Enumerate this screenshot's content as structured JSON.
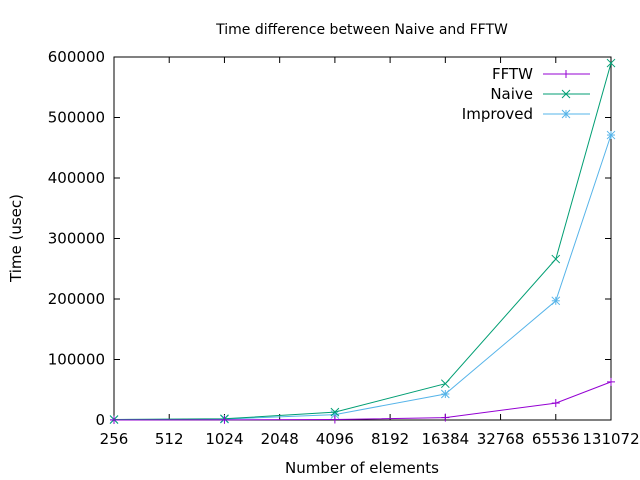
{
  "chart_data": {
    "type": "line",
    "title": "Time difference between Naive and FFTW",
    "xlabel": "Number of elements",
    "ylabel": "Time (usec)",
    "x": [
      256,
      1024,
      4096,
      16384,
      65536,
      131072
    ],
    "x_ticks": [
      "256",
      "512",
      "1024",
      "2048",
      "4096",
      "8192",
      "16384",
      "32768",
      "65536",
      "131072"
    ],
    "x_scale": "log2",
    "xlim": [
      256,
      131072
    ],
    "ylim": [
      0,
      600000
    ],
    "y_ticks": [
      0,
      100000,
      200000,
      300000,
      400000,
      500000,
      600000
    ],
    "grid": false,
    "legend_position": "top-right",
    "series": [
      {
        "name": "FFTW",
        "color": "#9400d3",
        "marker": "plus",
        "values": [
          50,
          200,
          800,
          4000,
          28000,
          63000
        ]
      },
      {
        "name": "Naive",
        "color": "#009e73",
        "marker": "cross",
        "values": [
          800,
          2000,
          13000,
          60000,
          266000,
          590000
        ]
      },
      {
        "name": "Improved",
        "color": "#56b4e9",
        "marker": "star",
        "values": [
          500,
          1500,
          9000,
          43000,
          197000,
          471000
        ]
      }
    ]
  }
}
